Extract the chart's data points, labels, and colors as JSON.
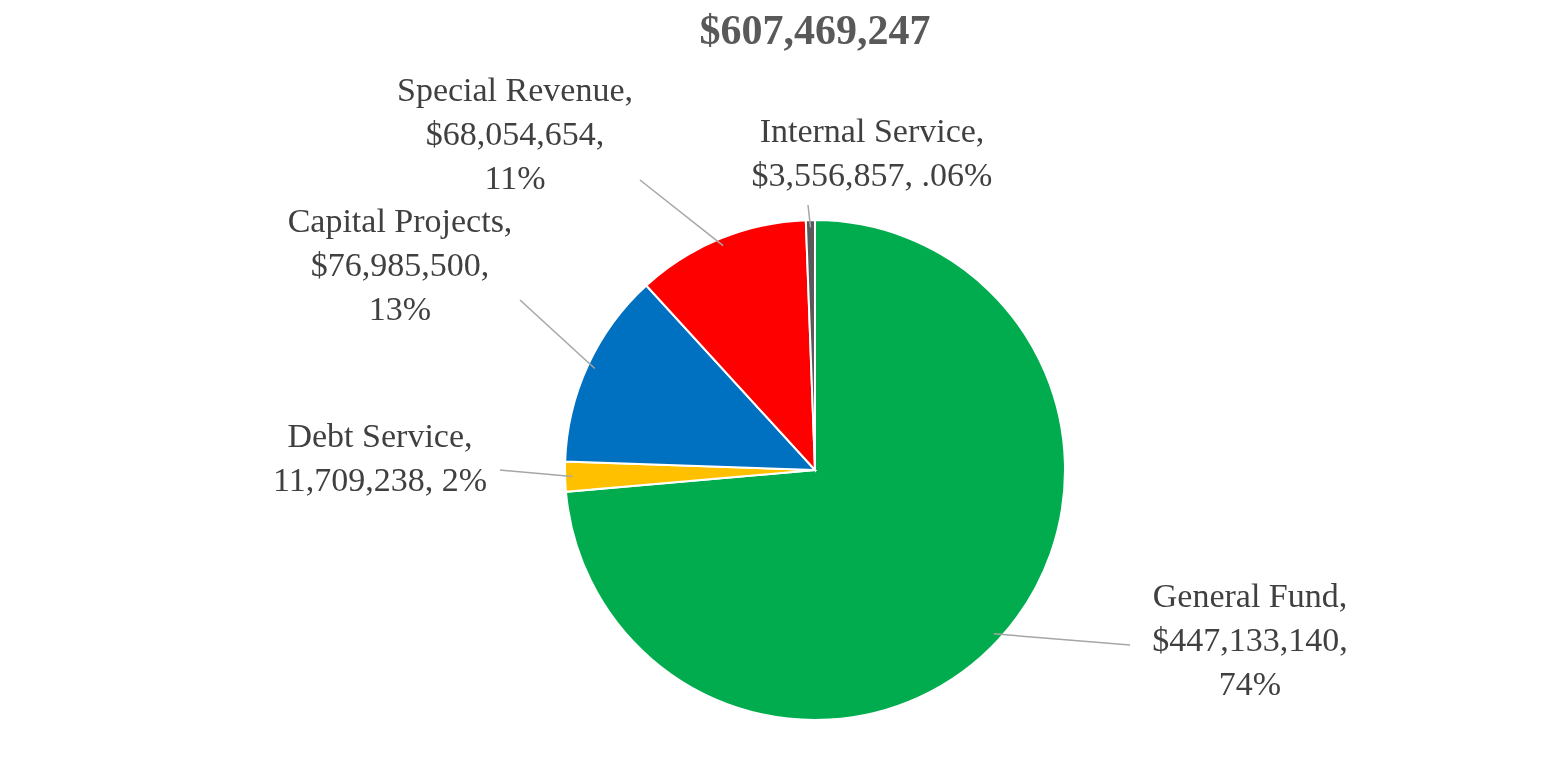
{
  "chart_data": {
    "type": "pie",
    "title": "$607,469,247",
    "categories": [
      "General Fund",
      "Debt Service",
      "Capital Projects",
      "Special Revenue",
      "Internal Service"
    ],
    "values": [
      447133140,
      11709238,
      76985500,
      68054654,
      3556857
    ],
    "colors": [
      "#00ac4e",
      "#ffc000",
      "#0070c0",
      "#ff0000",
      "#595959"
    ],
    "value_labels": [
      ", $447,133,140, 74%",
      ", 11,709,238, 2%",
      ", $76,985,500, 13%",
      ", $68,054,654, 11%",
      ", $3,556,857, .06%"
    ]
  }
}
